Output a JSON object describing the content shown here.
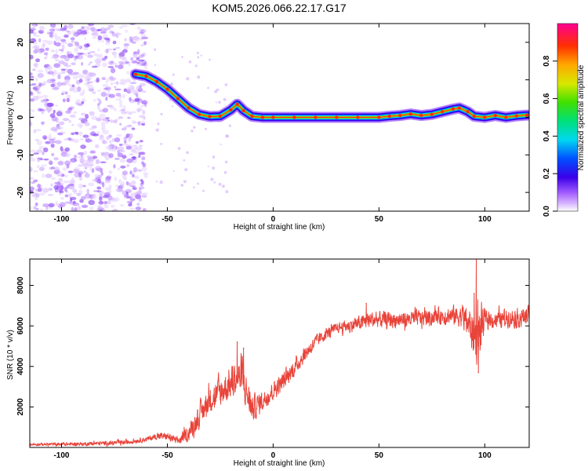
{
  "title": "KOM5.2026.066.22.17.G17",
  "chart_data": [
    {
      "type": "heatmap",
      "name": "spectrogram",
      "xlabel": "Height of straight line (km)",
      "ylabel": "Frequency (Hz)",
      "xlim": [
        -115,
        121
      ],
      "ylim": [
        -25,
        25
      ],
      "xticks": [
        -100,
        -50,
        0,
        50,
        100
      ],
      "xtick_labels": [
        "-100",
        "-50",
        "0",
        "50",
        "100"
      ],
      "yticks": [
        20,
        10,
        0,
        -10,
        -20
      ],
      "ytick_labels": [
        "20",
        "10",
        "0",
        "-10",
        "-20"
      ],
      "colorbar": {
        "label": "Normalized spectral amplitude",
        "range": [
          0,
          1
        ],
        "ticks": [
          0,
          0.2,
          0.4,
          0.6,
          0.8
        ],
        "tick_labels": [
          "0.0",
          "0.2",
          "0.4",
          "0.6",
          "0.8"
        ]
      },
      "ridge": {
        "x": [
          -65,
          -60,
          -55,
          -50,
          -45,
          -40,
          -35,
          -30,
          -25,
          -20,
          -17,
          -14,
          -10,
          -5,
          0,
          10,
          20,
          30,
          40,
          50,
          55,
          60,
          65,
          70,
          75,
          80,
          85,
          88,
          92,
          95,
          100,
          105,
          110,
          115,
          120
        ],
        "y": [
          11.5,
          11.0,
          9.5,
          7.5,
          5.0,
          2.5,
          0.8,
          0.2,
          0.3,
          2.0,
          3.5,
          1.8,
          0.3,
          0.0,
          0.0,
          0.0,
          0.0,
          0.0,
          0.0,
          0.0,
          0.3,
          0.5,
          0.9,
          0.5,
          0.8,
          1.5,
          2.2,
          2.5,
          1.5,
          0.3,
          0.0,
          0.5,
          0.0,
          0.4,
          0.6
        ]
      },
      "noise_region_x": [
        -115,
        -60
      ]
    },
    {
      "type": "line",
      "name": "snr",
      "xlabel": "Height of straight line (km)",
      "ylabel": "SNR (10 * v/v)",
      "xlim": [
        -115,
        121
      ],
      "ylim": [
        0,
        9300
      ],
      "xticks": [
        -100,
        -50,
        0,
        50,
        100
      ],
      "xtick_labels": [
        "-100",
        "-50",
        "0",
        "50",
        "100"
      ],
      "yticks": [
        2000,
        4000,
        6000,
        8000
      ],
      "ytick_labels": [
        "2000",
        "4000",
        "6000",
        "8000"
      ],
      "color": "#e8443a",
      "trend": {
        "x": [
          -115,
          -90,
          -70,
          -60,
          -55,
          -50,
          -45,
          -40,
          -35,
          -30,
          -25,
          -20,
          -15,
          -10,
          -5,
          0,
          5,
          10,
          15,
          20,
          25,
          30,
          35,
          40,
          45,
          50,
          60,
          70,
          80,
          90,
          96,
          100,
          105,
          110,
          115,
          121
        ],
        "y": [
          150,
          170,
          250,
          400,
          550,
          550,
          300,
          700,
          1500,
          2400,
          2700,
          3200,
          3500,
          1900,
          2300,
          2800,
          3300,
          3900,
          4600,
          5200,
          5600,
          5900,
          6000,
          6100,
          6300,
          6300,
          6300,
          6400,
          6500,
          6500,
          5400,
          6300,
          6300,
          6400,
          6400,
          6500
        ]
      },
      "noise_amplitude": {
        "x": [
          -115,
          -60,
          -45,
          -35,
          -25,
          -15,
          -5,
          10,
          30,
          45,
          80,
          90,
          95,
          98,
          100,
          121
        ],
        "y": [
          80,
          150,
          250,
          700,
          900,
          1100,
          600,
          500,
          300,
          500,
          500,
          700,
          1500,
          1800,
          500,
          600
        ]
      },
      "spikes": [
        {
          "x": -17,
          "y": 5200
        },
        {
          "x": -14,
          "y": 4900
        },
        {
          "x": 44,
          "y": 7100
        },
        {
          "x": 96,
          "y": 9300
        },
        {
          "x": 97,
          "y": 3700
        },
        {
          "x": 95,
          "y": 7600
        }
      ]
    }
  ]
}
